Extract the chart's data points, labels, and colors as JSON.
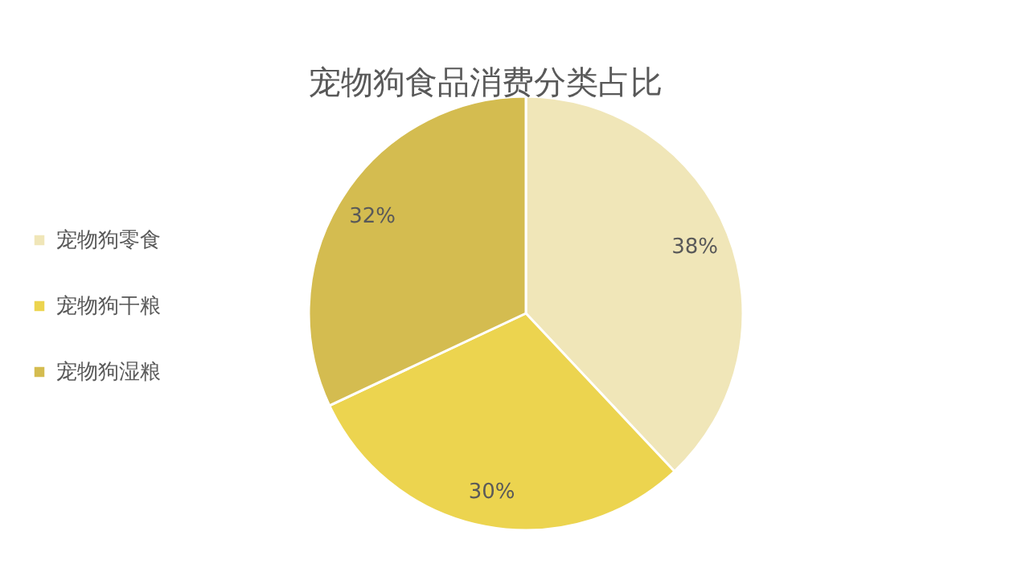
{
  "chart_data": {
    "type": "pie",
    "title": "宠物狗食品消费分类占比",
    "categories": [
      "宠物狗零食",
      "宠物狗干粮",
      "宠物狗湿粮"
    ],
    "values": [
      38,
      30,
      32
    ],
    "colors": [
      "#f0e6b8",
      "#ecd44f",
      "#d4bc50"
    ],
    "value_labels": [
      "38%",
      "30%",
      "32%"
    ],
    "legend": "left"
  }
}
